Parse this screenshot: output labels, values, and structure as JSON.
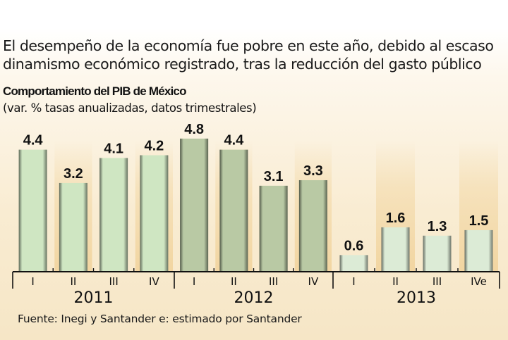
{
  "headline": "El desempeño de la economía fue pobre en este año, debido al escaso dinamismo económico registrado, tras la reducción del gasto público",
  "chart_data": {
    "type": "bar",
    "title": "Comportamiento del PIB de México",
    "subtitle": "(var. % tasas anualizadas, datos trimestrales)",
    "xlabel": "",
    "ylabel": "",
    "ylim": [
      0,
      4.8
    ],
    "grid": false,
    "groups": [
      {
        "year": "2011",
        "quarters": [
          "I",
          "II",
          "III",
          "IV"
        ],
        "values": [
          4.4,
          3.2,
          4.1,
          4.2
        ],
        "labels": [
          "4.4",
          "3.2",
          "4.1",
          "4.2"
        ]
      },
      {
        "year": "2012",
        "quarters": [
          "I",
          "II",
          "III",
          "IV"
        ],
        "values": [
          4.8,
          4.4,
          3.1,
          3.3
        ],
        "labels": [
          "4.8",
          "4.4",
          "3.1",
          "3.3"
        ]
      },
      {
        "year": "2013",
        "quarters": [
          "I",
          "II",
          "III",
          "IVe"
        ],
        "values": [
          0.6,
          1.6,
          1.3,
          1.5
        ],
        "labels": [
          "0.6",
          "1.6",
          "1.3",
          "1.5"
        ]
      }
    ],
    "bar_colors": {
      "2011": "#cfe6c2",
      "2012": "#b9c9a4",
      "2013": "#dcebd6"
    }
  },
  "source": "Fuente: Inegi y Santander e: estimado por Santander"
}
